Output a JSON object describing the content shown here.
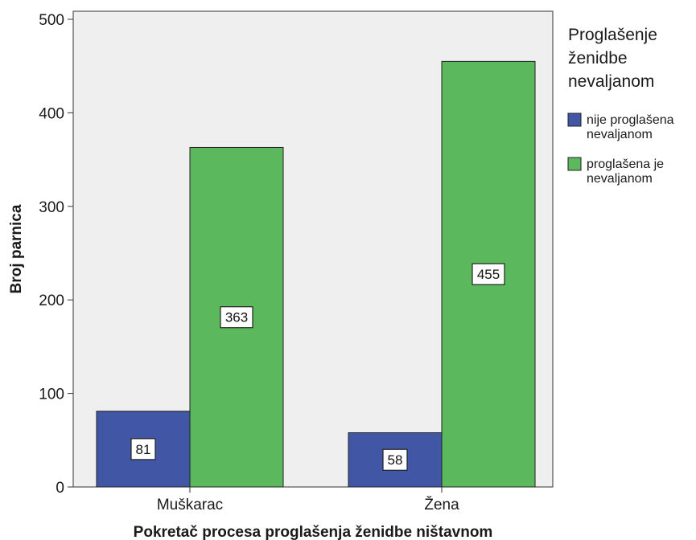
{
  "chart_data": {
    "type": "bar",
    "categories": [
      "Muškarac",
      "Žena"
    ],
    "series": [
      {
        "name": "nije proglašena nevaljanom",
        "values": [
          81,
          58
        ],
        "color": "#4256a6"
      },
      {
        "name": "proglašena je nevaljanom",
        "values": [
          363,
          455
        ],
        "color": "#5cb85c"
      }
    ],
    "title": "",
    "xlabel": "Pokretač procesa proglašenja ženidbe ništavnom",
    "ylabel": "Broj parnica",
    "ylim": [
      0,
      500
    ],
    "yticks": [
      0,
      100,
      200,
      300,
      400,
      500
    ],
    "legend": {
      "title_lines": [
        "Proglašenje",
        "ženidbe",
        "nevaljanom"
      ],
      "entries": [
        {
          "lines": [
            "nije proglašena",
            "nevaljanom"
          ]
        },
        {
          "lines": [
            "proglašena je",
            "nevaljanom"
          ]
        }
      ],
      "position": "right"
    },
    "plot_background": "#efefef",
    "grid": false,
    "data_labels": true
  }
}
